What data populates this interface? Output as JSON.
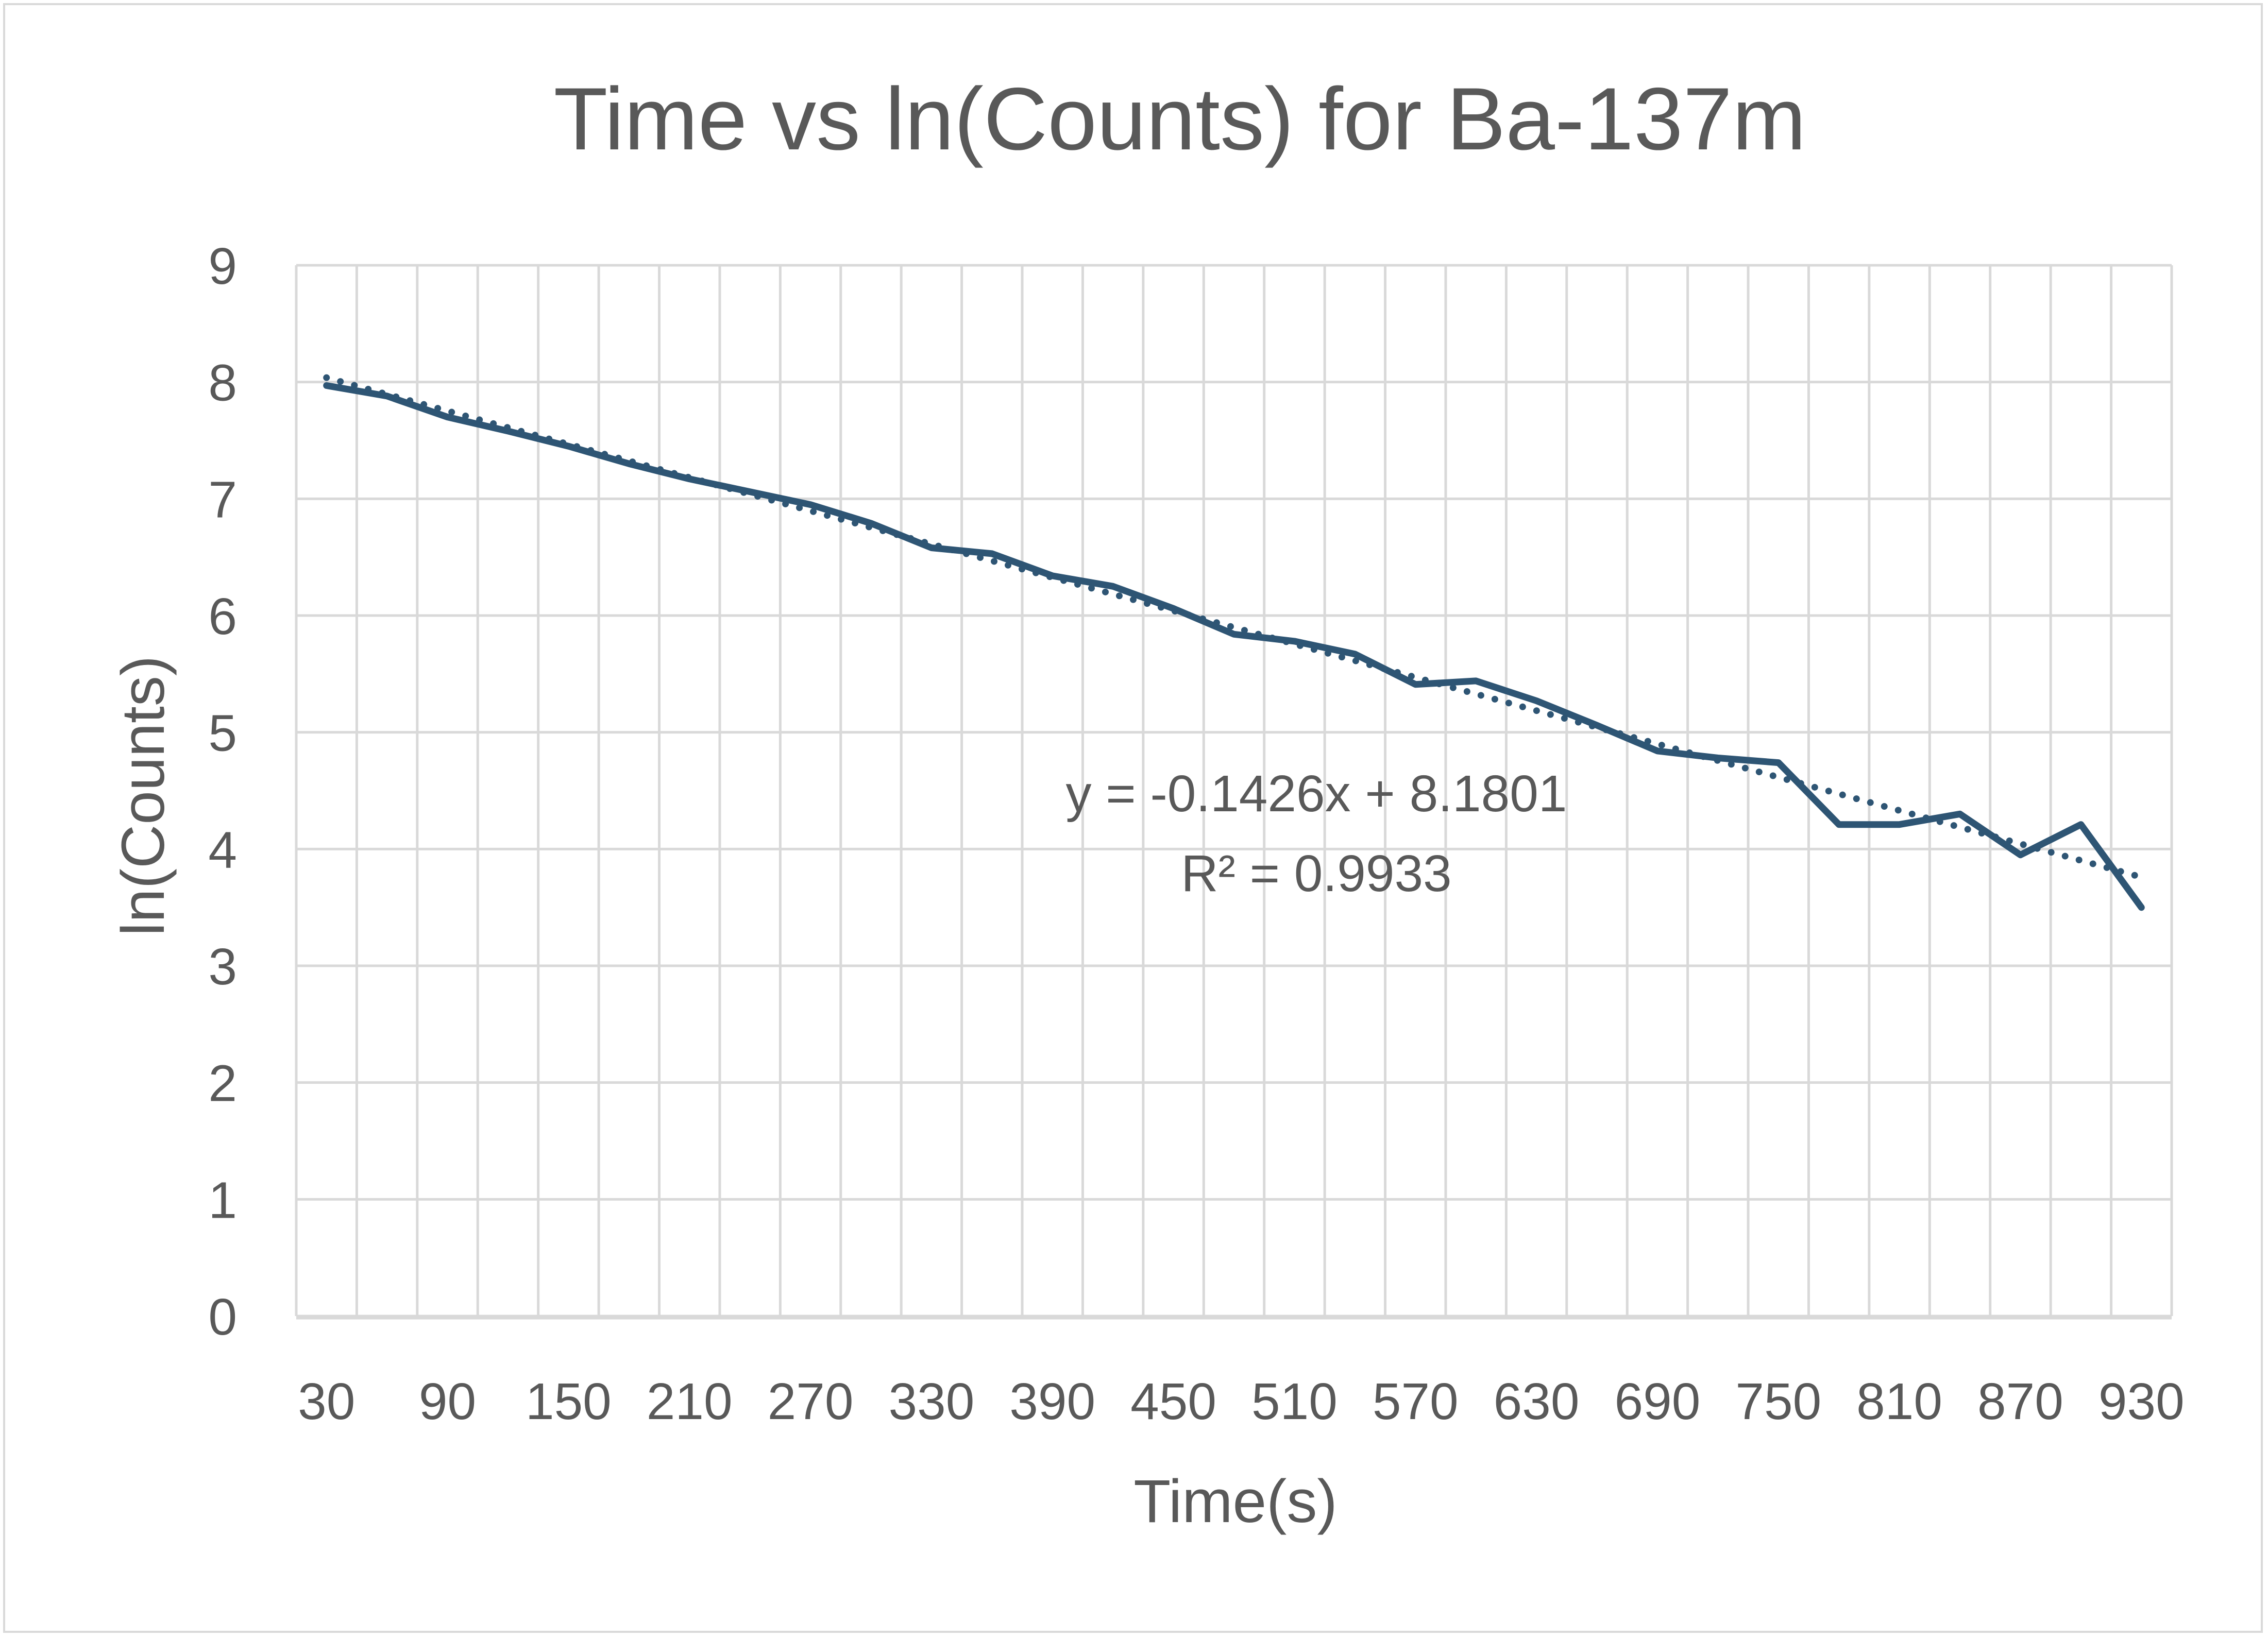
{
  "chart_data": {
    "type": "line",
    "title": "Time vs ln(Counts) for Ba-137m",
    "xlabel": "Time(s)",
    "ylabel": "ln(Counts)",
    "ylim": [
      0,
      9
    ],
    "y_ticks": [
      "0",
      "1",
      "2",
      "3",
      "4",
      "5",
      "6",
      "7",
      "8",
      "9"
    ],
    "x_tick_labels": [
      "30",
      "90",
      "150",
      "210",
      "270",
      "330",
      "390",
      "450",
      "510",
      "570",
      "630",
      "690",
      "750",
      "810",
      "870",
      "930"
    ],
    "x": [
      30,
      60,
      90,
      120,
      150,
      180,
      210,
      240,
      270,
      300,
      330,
      360,
      390,
      420,
      450,
      480,
      510,
      540,
      570,
      600,
      630,
      660,
      690,
      720,
      750,
      780,
      810,
      840,
      870,
      900,
      930
    ],
    "series": [
      {
        "values": [
          7.97,
          7.88,
          7.7,
          7.58,
          7.45,
          7.3,
          7.17,
          7.06,
          6.95,
          6.79,
          6.58,
          6.53,
          6.34,
          6.25,
          6.06,
          5.84,
          5.78,
          5.67,
          5.41,
          5.44,
          5.27,
          5.06,
          4.84,
          4.78,
          4.74,
          4.21,
          4.21,
          4.3,
          3.95,
          4.21,
          3.5
        ],
        "color": "#2e5574",
        "style": "solid"
      }
    ],
    "trendline": {
      "type": "linear",
      "slope": -0.1426,
      "intercept": 8.1801,
      "style": "dotted",
      "color": "#2e5574",
      "equation_label": "y = -0.1426x + 8.1801",
      "r2_label": "R² = 0.9933"
    },
    "grid": true,
    "legend": "none"
  }
}
